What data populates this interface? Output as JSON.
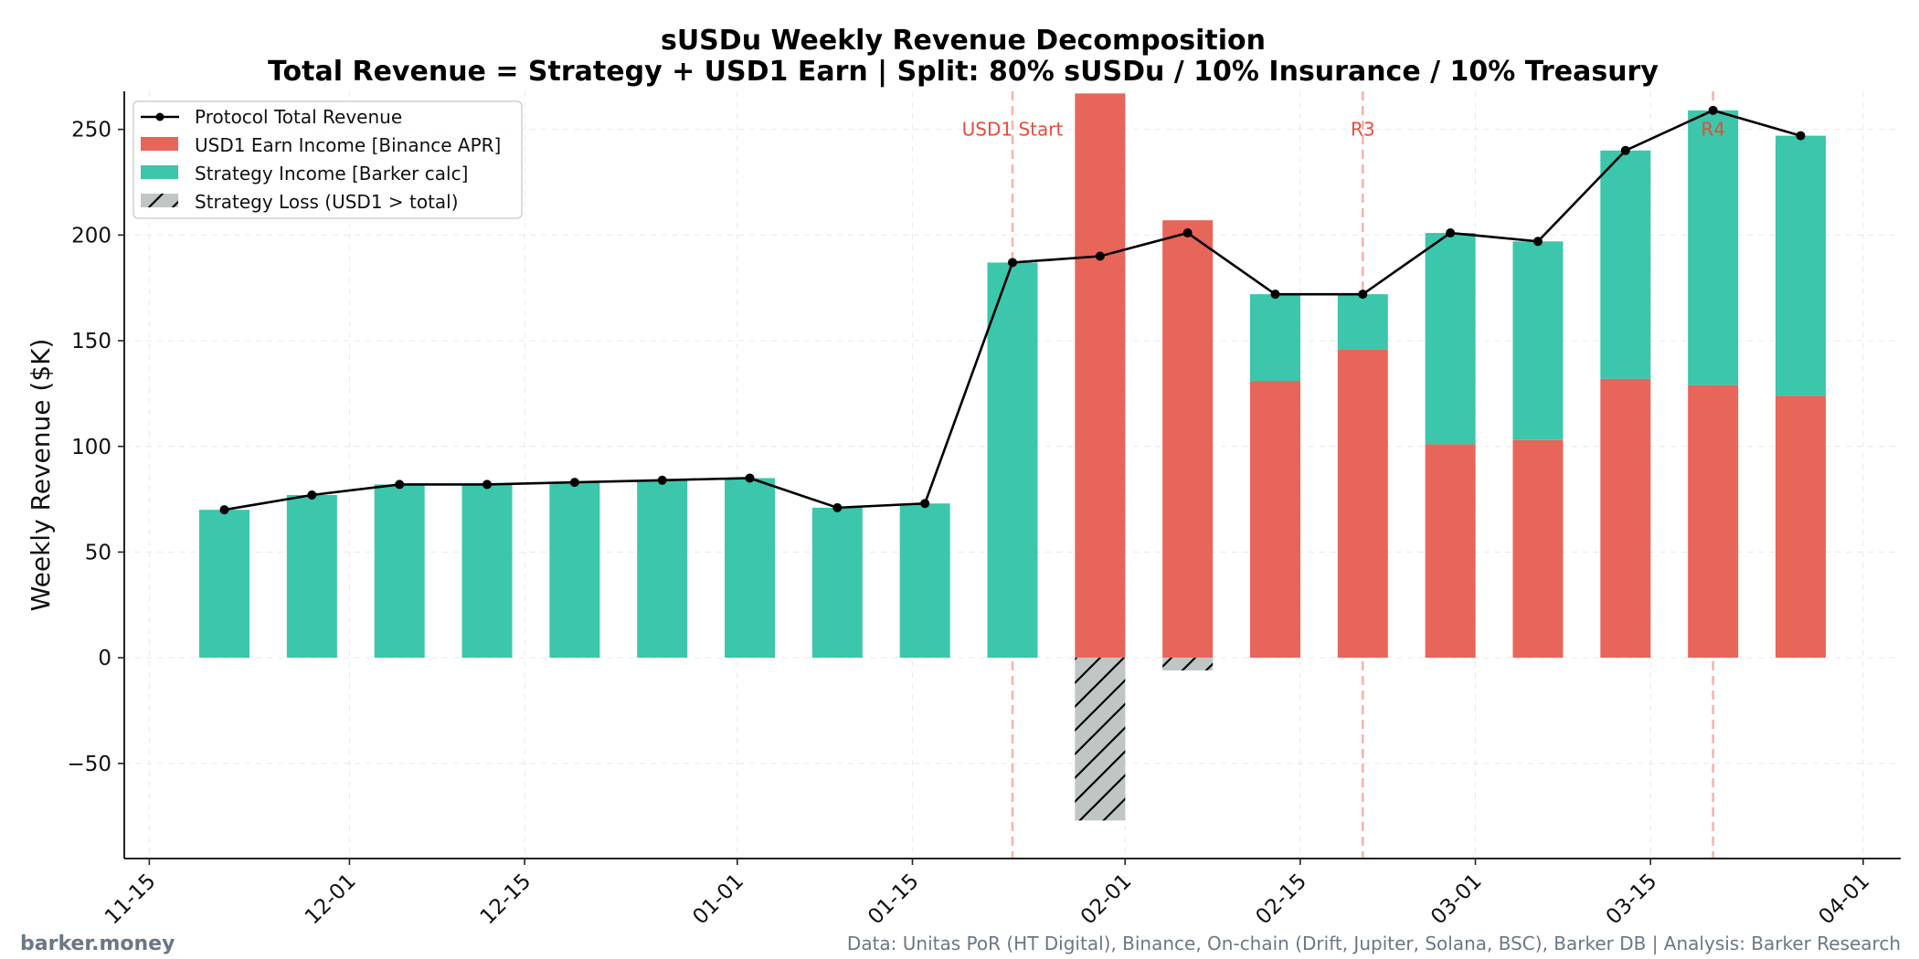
{
  "chart_data": {
    "type": "bar",
    "title": "sUSDu Weekly Revenue Decomposition",
    "subtitle": "Total Revenue = Strategy + USD1 Earn  |  Split: 80% sUSDu / 10% Insurance / 10% Treasury",
    "xlabel": "",
    "ylabel": "Weekly Revenue ($K)",
    "ylim": [
      -95,
      268
    ],
    "yticks": [
      -50,
      0,
      50,
      100,
      150,
      200,
      250
    ],
    "ytick_labels": [
      "−50",
      "0",
      "50",
      "100",
      "150",
      "200",
      "250"
    ],
    "xlim": [
      "11-13",
      "04-04"
    ],
    "xticks": [
      "11-15",
      "12-01",
      "12-15",
      "01-01",
      "01-15",
      "02-01",
      "02-15",
      "03-01",
      "03-15",
      "04-01"
    ],
    "grid": true,
    "legend_position": "top-left",
    "categories": [
      "11-21",
      "11-28",
      "12-05",
      "12-12",
      "12-19",
      "12-26",
      "01-02",
      "01-09",
      "01-16",
      "01-23",
      "01-30",
      "02-06",
      "02-13",
      "02-20",
      "02-27",
      "03-06",
      "03-13",
      "03-20",
      "03-27"
    ],
    "series": [
      {
        "name": "Protocol Total Revenue",
        "kind": "line",
        "color": "#000000",
        "values": [
          70,
          77,
          82,
          82,
          83,
          84,
          85,
          71,
          73,
          187,
          190,
          201,
          172,
          172,
          201,
          197,
          240,
          259,
          247
        ]
      },
      {
        "name": "USD1 Earn Income [Binance APR]",
        "kind": "bar",
        "color": "#e8655a",
        "values": [
          0,
          0,
          0,
          0,
          0,
          0,
          0,
          0,
          0,
          0,
          267,
          207,
          131,
          146,
          101,
          103,
          132,
          129,
          124
        ]
      },
      {
        "name": "Strategy Income [Barker calc]",
        "kind": "bar",
        "color": "#3cc6ab",
        "values": [
          70,
          77,
          82,
          82,
          83,
          84,
          85,
          71,
          73,
          187,
          0,
          0,
          41,
          26,
          100,
          94,
          108,
          130,
          123
        ]
      },
      {
        "name": "Strategy Loss (USD1 > total)",
        "kind": "bar-hatched",
        "color": "#bfc6c4",
        "values": [
          0,
          0,
          0,
          0,
          0,
          0,
          0,
          0,
          0,
          0,
          -77,
          -6,
          0,
          0,
          0,
          0,
          0,
          0,
          0
        ]
      }
    ],
    "annotations": [
      {
        "date": "01-23",
        "label": "USD1 Start"
      },
      {
        "date": "02-20",
        "label": "R3"
      },
      {
        "date": "03-20",
        "label": "R4"
      }
    ]
  },
  "footer": {
    "brand": "barker.money",
    "source": "Data: Unitas PoR (HT Digital), Binance, On-chain (Drift, Jupiter, Solana, BSC), Barker DB  |  Analysis: Barker Research"
  },
  "colors": {
    "annotation": "#e74c3c",
    "annotation_line": "#f4b6ad"
  }
}
